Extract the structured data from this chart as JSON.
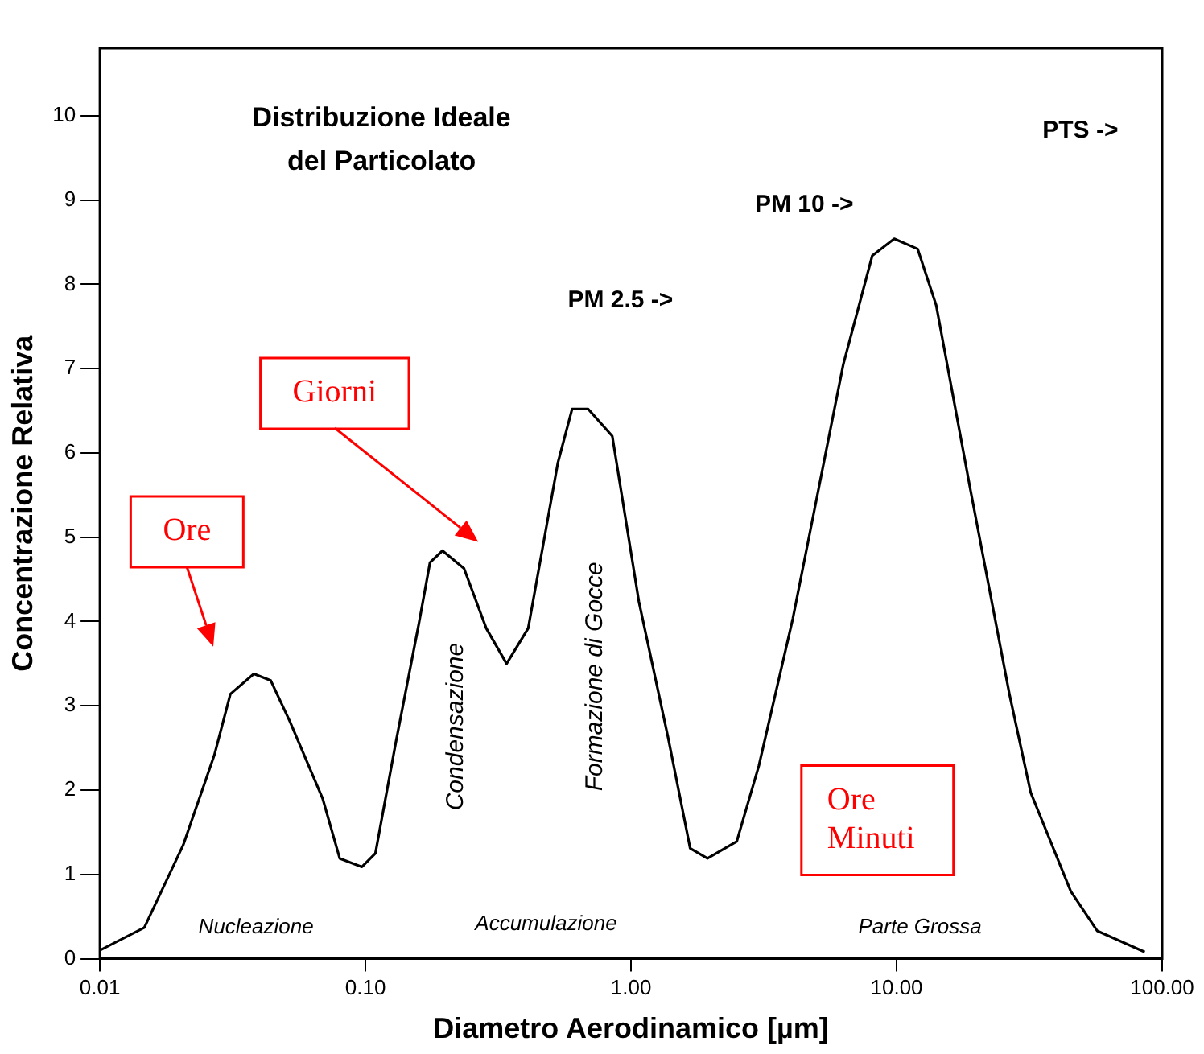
{
  "chart_data": {
    "type": "line",
    "title": "Distribuzione Ideale\ndel Particolato",
    "xlabel": "Diametro Aerodinamico [µm]",
    "ylabel": "Concentrazione Relativa",
    "x": [
      0.01,
      0.0147,
      0.0206,
      0.027,
      0.031,
      0.038,
      0.044,
      0.052,
      0.069,
      0.08,
      0.097,
      0.109,
      0.13,
      0.159,
      0.175,
      0.195,
      0.235,
      0.285,
      0.34,
      0.41,
      0.53,
      0.6,
      0.69,
      0.85,
      1.07,
      1.38,
      1.67,
      1.94,
      2.5,
      3.03,
      4.07,
      6.3,
      8.1,
      9.8,
      12,
      14.1,
      19,
      26.6,
      32,
      45.3,
      57,
      86
    ],
    "color": "#000000",
    "values": [
      0.1,
      0.37,
      1.35,
      2.42,
      3.14,
      3.38,
      3.3,
      2.81,
      1.9,
      1.19,
      1.09,
      1.25,
      2.56,
      3.98,
      4.7,
      4.84,
      4.63,
      3.92,
      3.5,
      3.92,
      5.88,
      6.52,
      6.52,
      6.2,
      4.24,
      2.62,
      1.31,
      1.19,
      1.39,
      2.29,
      4.04,
      7.05,
      8.34,
      8.54,
      8.42,
      7.75,
      5.55,
      3.14,
      1.97,
      0.8,
      0.33,
      0.08
    ],
    "log": "x",
    "xlim": [
      0.01,
      100
    ],
    "xticks": [
      {
        "value": 0.01,
        "label": "0.01"
      },
      {
        "value": 0.1,
        "label": "0.10"
      },
      {
        "value": 1,
        "label": "1.00"
      },
      {
        "value": 10,
        "label": "10.00"
      },
      {
        "value": 100,
        "label": "100.00"
      }
    ],
    "ylim": [
      0,
      10.8
    ],
    "yticks": [
      0,
      1,
      2,
      3,
      4,
      5,
      6,
      7,
      8,
      9,
      10
    ],
    "grid": false,
    "legend": false,
    "marker": "none",
    "line_style": "solid",
    "annotations": [
      "PTS ->",
      "PM 10 ->",
      "PM 2.5 ->",
      "Nucleazione",
      "Accumulazione",
      "Parte Grossa",
      "Condensazione",
      "Formazione di Gocce",
      "Ore",
      "Giorni",
      "Ore\nMinuti"
    ]
  }
}
